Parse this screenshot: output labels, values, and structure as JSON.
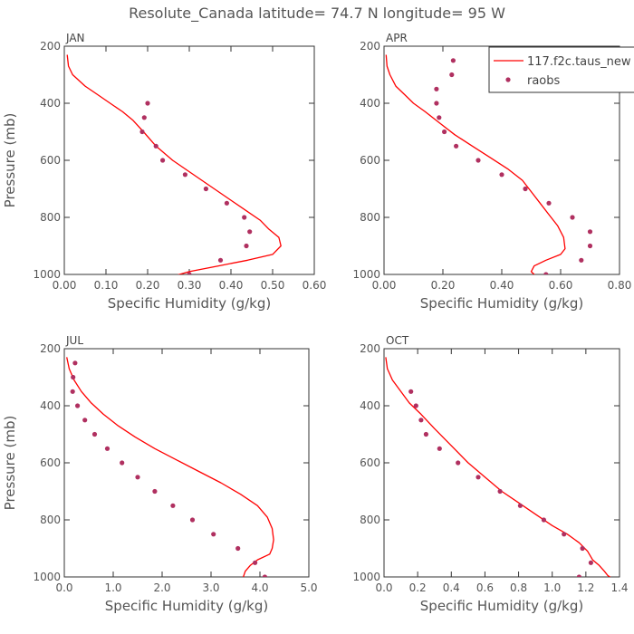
{
  "figure_title": "Resolute_Canada   latitude= 74.7 N longitude= 95 W",
  "colors": {
    "model": "#ff0000",
    "obs": "#b03060",
    "axis": "#333333",
    "text": "#555555"
  },
  "legend": {
    "placement": "top-right of APR panel",
    "model_label": "117.f2c.taus_new",
    "obs_label": "raobs"
  },
  "chart_data": [
    {
      "type": "line",
      "panel_label": "JAN",
      "xlabel": "Specific Humidity (g/kg)",
      "ylabel": "Pressure (mb)",
      "xlim": [
        0,
        0.6
      ],
      "ylim": [
        200,
        1000
      ],
      "y_inverted": true,
      "xticks": [
        0,
        0.1,
        0.2,
        0.3,
        0.4,
        0.5,
        0.6
      ],
      "xtick_labels": [
        "0.00",
        "0.10",
        "0.20",
        "0.30",
        "0.40",
        "0.50",
        "0.60"
      ],
      "yticks": [
        200,
        400,
        600,
        800,
        1000
      ],
      "ytick_labels": [
        "200",
        "400",
        "600",
        "800",
        "1000"
      ],
      "series": [
        {
          "name": "117.f2c.taus_new",
          "kind": "line",
          "x": [
            0.007,
            0.01,
            0.02,
            0.05,
            0.08,
            0.11,
            0.14,
            0.165,
            0.19,
            0.22,
            0.26,
            0.3,
            0.35,
            0.4,
            0.44,
            0.47,
            0.49,
            0.515,
            0.52,
            0.5,
            0.44,
            0.37,
            0.3,
            0.24
          ],
          "y": [
            230,
            270,
            300,
            340,
            370,
            400,
            430,
            460,
            500,
            550,
            600,
            640,
            690,
            740,
            780,
            810,
            840,
            870,
            900,
            930,
            950,
            970,
            990,
            1015
          ]
        },
        {
          "name": "raobs",
          "kind": "scatter",
          "x": [
            0.2,
            0.192,
            0.187,
            0.22,
            0.236,
            0.29,
            0.34,
            0.39,
            0.432,
            0.445,
            0.437,
            0.375,
            0.3
          ],
          "y": [
            400,
            450,
            500,
            550,
            600,
            650,
            700,
            750,
            800,
            850,
            900,
            950,
            1000
          ]
        }
      ]
    },
    {
      "type": "line",
      "panel_label": "APR",
      "xlabel": "Specific Humidity (g/kg)",
      "ylabel": "",
      "xlim": [
        0,
        0.8
      ],
      "ylim": [
        200,
        1000
      ],
      "y_inverted": true,
      "xticks": [
        0,
        0.2,
        0.4,
        0.6,
        0.8
      ],
      "xtick_labels": [
        "0.00",
        "0.20",
        "0.40",
        "0.60",
        "0.80"
      ],
      "yticks": [
        200,
        400,
        600,
        800,
        1000
      ],
      "ytick_labels": [
        "200",
        "400",
        "600",
        "800",
        "1000"
      ],
      "series": [
        {
          "name": "117.f2c.taus_new",
          "kind": "line",
          "x": [
            0.007,
            0.01,
            0.02,
            0.04,
            0.07,
            0.1,
            0.14,
            0.19,
            0.24,
            0.3,
            0.36,
            0.42,
            0.47,
            0.5,
            0.53,
            0.56,
            0.59,
            0.61,
            0.615,
            0.6,
            0.55,
            0.51,
            0.5,
            0.51,
            0.5
          ],
          "y": [
            230,
            270,
            300,
            340,
            370,
            400,
            430,
            470,
            510,
            550,
            590,
            630,
            670,
            710,
            750,
            790,
            830,
            870,
            910,
            930,
            950,
            970,
            990,
            1000,
            1010
          ]
        },
        {
          "name": "raobs",
          "kind": "scatter",
          "x": [
            0.235,
            0.23,
            0.178,
            0.178,
            0.187,
            0.205,
            0.245,
            0.32,
            0.4,
            0.48,
            0.56,
            0.64,
            0.7,
            0.7,
            0.67,
            0.55
          ],
          "y": [
            250,
            300,
            350,
            400,
            450,
            500,
            550,
            600,
            650,
            700,
            750,
            800,
            850,
            900,
            950,
            1000
          ]
        }
      ]
    },
    {
      "type": "line",
      "panel_label": "JUL",
      "xlabel": "Specific Humidity (g/kg)",
      "ylabel": "Pressure (mb)",
      "xlim": [
        0,
        5
      ],
      "ylim": [
        200,
        1000
      ],
      "y_inverted": true,
      "xticks": [
        0,
        1,
        2,
        3,
        4,
        5
      ],
      "xtick_labels": [
        "0.0",
        "1.0",
        "2.0",
        "3.0",
        "4.0",
        "5.0"
      ],
      "yticks": [
        200,
        400,
        600,
        800,
        1000
      ],
      "ytick_labels": [
        "200",
        "400",
        "600",
        "800",
        "1000"
      ],
      "series": [
        {
          "name": "117.f2c.taus_new",
          "kind": "line",
          "x": [
            0.05,
            0.1,
            0.2,
            0.35,
            0.55,
            0.8,
            1.1,
            1.45,
            1.85,
            2.3,
            2.75,
            3.2,
            3.6,
            3.95,
            4.15,
            4.25,
            4.28,
            4.25,
            4.2,
            3.95,
            3.8,
            3.7,
            3.65
          ],
          "y": [
            230,
            270,
            310,
            350,
            390,
            430,
            470,
            510,
            550,
            590,
            630,
            670,
            710,
            750,
            790,
            830,
            870,
            900,
            920,
            940,
            960,
            980,
            1005
          ]
        },
        {
          "name": "raobs",
          "kind": "scatter",
          "x": [
            0.22,
            0.18,
            0.17,
            0.27,
            0.42,
            0.62,
            0.88,
            1.18,
            1.5,
            1.85,
            2.22,
            2.62,
            3.05,
            3.55,
            3.9,
            4.1
          ],
          "y": [
            250,
            300,
            350,
            400,
            450,
            500,
            550,
            600,
            650,
            700,
            750,
            800,
            850,
            900,
            950,
            1000
          ]
        }
      ]
    },
    {
      "type": "line",
      "panel_label": "OCT",
      "xlabel": "Specific Humidity (g/kg)",
      "ylabel": "",
      "xlim": [
        0,
        1.4
      ],
      "ylim": [
        200,
        1000
      ],
      "y_inverted": true,
      "xticks": [
        0,
        0.2,
        0.4,
        0.6,
        0.8,
        1.0,
        1.2,
        1.4
      ],
      "xtick_labels": [
        "0.0",
        "0.2",
        "0.4",
        "0.6",
        "0.8",
        "1.0",
        "1.2",
        "1.4"
      ],
      "yticks": [
        200,
        400,
        600,
        800,
        1000
      ],
      "ytick_labels": [
        "200",
        "400",
        "600",
        "800",
        "1000"
      ],
      "series": [
        {
          "name": "117.f2c.taus_new",
          "kind": "line",
          "x": [
            0.01,
            0.02,
            0.05,
            0.1,
            0.15,
            0.22,
            0.3,
            0.4,
            0.5,
            0.6,
            0.7,
            0.8,
            0.9,
            1.0,
            1.09,
            1.16,
            1.21,
            1.24,
            1.28,
            1.31,
            1.33,
            1.38
          ],
          "y": [
            230,
            270,
            310,
            350,
            390,
            430,
            480,
            540,
            600,
            650,
            700,
            740,
            780,
            820,
            850,
            880,
            910,
            940,
            960,
            980,
            995,
            1015
          ]
        },
        {
          "name": "raobs",
          "kind": "scatter",
          "x": [
            0.16,
            0.19,
            0.22,
            0.25,
            0.33,
            0.44,
            0.56,
            0.69,
            0.81,
            0.95,
            1.07,
            1.18,
            1.23,
            1.16
          ],
          "y": [
            350,
            400,
            450,
            500,
            550,
            600,
            650,
            700,
            750,
            800,
            850,
            900,
            950,
            1000
          ]
        }
      ]
    }
  ]
}
